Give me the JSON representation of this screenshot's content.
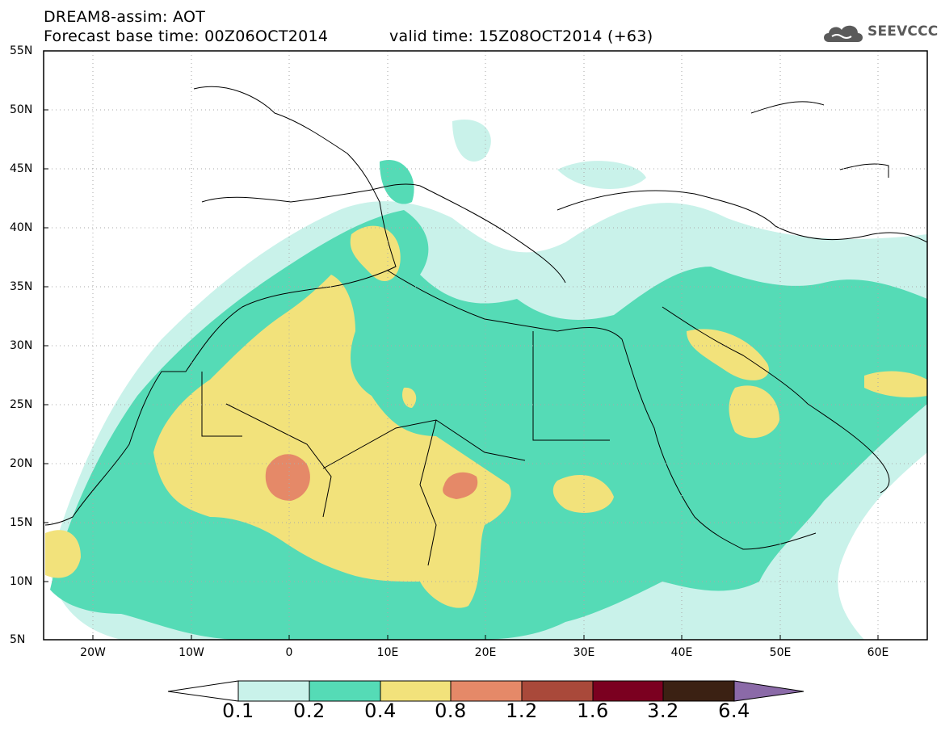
{
  "header": {
    "title": "DREAM8-assim: AOT",
    "base_time": "Forecast base time: 00Z06OCT2014",
    "valid_time": "valid time: 15Z08OCT2014 (+63)",
    "logo_text": "SEEVCCC"
  },
  "map": {
    "lat_labels": [
      "55N",
      "50N",
      "45N",
      "40N",
      "35N",
      "30N",
      "25N",
      "20N",
      "15N",
      "10N",
      "5N"
    ],
    "lon_labels": [
      "20W",
      "10W",
      "0",
      "10E",
      "20E",
      "30E",
      "40E",
      "50E",
      "60E"
    ],
    "lon_range": [
      -25,
      65
    ],
    "lat_range": [
      5,
      55
    ],
    "grid": "dotted"
  },
  "colorbar": {
    "values": [
      "0.1",
      "0.2",
      "0.4",
      "0.8",
      "1.2",
      "1.6",
      "3.2",
      "6.4"
    ],
    "colors": [
      "#ffffff",
      "#c9f2ea",
      "#55dbb6",
      "#f2e27b",
      "#e58968",
      "#a9493a",
      "#7b0020",
      "#3b2113",
      "#8b6aa8"
    ]
  },
  "colors": {
    "aot_01_02": "#c9f2ea",
    "aot_02_04": "#55dbb6",
    "aot_04_08": "#f2e27b",
    "aot_08_12": "#e58968"
  }
}
